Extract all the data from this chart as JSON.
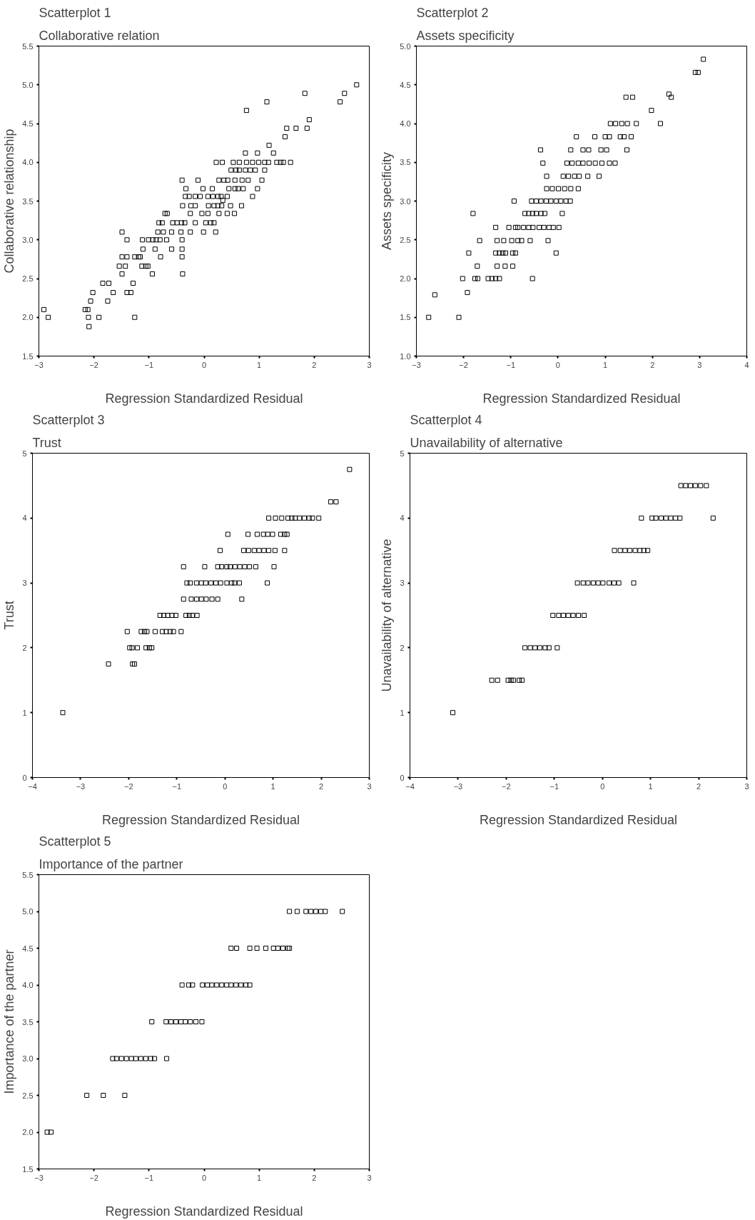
{
  "chart_data": [
    {
      "type": "scatter",
      "title": "Scatterplot 1",
      "subtitle": "Collaborative relation",
      "xlabel": "Regression Standardized Residual",
      "ylabel": "Collaborative relationship",
      "color": "#000000",
      "marker": "square",
      "xlim": [
        -3,
        3
      ],
      "ylim": [
        1.5,
        5.5
      ],
      "xticks": [
        -3,
        -2,
        -1,
        0,
        1,
        2,
        3
      ],
      "yticks": [
        1.5,
        {
          "value": 2,
          "label": "2.0"
        },
        2.5,
        {
          "value": 3,
          "label": "3.0"
        },
        3.5,
        {
          "value": 4,
          "label": "4.0"
        },
        4.5,
        {
          "value": 5,
          "label": "5.0"
        },
        5.5
      ],
      "x": [
        -2.91,
        -2.83,
        -2.16,
        -2.11,
        -2.1,
        -2.09,
        -2.06,
        -2.02,
        -1.91,
        -1.84,
        -1.73,
        -1.75,
        -1.65,
        -1.54,
        -1.49,
        -1.49,
        -1.49,
        -1.43,
        -1.4,
        -1.4,
        -1.4,
        -1.33,
        -1.29,
        -1.26,
        -1.26,
        -1.19,
        -1.16,
        -1.12,
        -1.11,
        -1.13,
        -1.06,
        -1.02,
        -1.01,
        -0.93,
        -0.87,
        -0.8,
        -0.94,
        -0.89,
        -0.84,
        -0.82,
        -0.76,
        -0.79,
        -0.74,
        -0.71,
        -0.67,
        -0.68,
        -0.59,
        -0.59,
        -0.57,
        -0.49,
        -0.42,
        -0.41,
        -0.35,
        -0.4,
        -0.4,
        -0.4,
        -0.4,
        -0.39,
        -0.39,
        -0.33,
        -0.34,
        -0.27,
        -0.25,
        -0.24,
        -0.16,
        -0.25,
        -0.16,
        -0.16,
        -0.07,
        -0.11,
        -0.04,
        -0.02,
        -0.01,
        0.03,
        0.12,
        0.18,
        0.07,
        0.16,
        0.25,
        0.31,
        0.08,
        0.18,
        0.25,
        0.07,
        0.27,
        0.15,
        0.21,
        0.22,
        0.33,
        0.27,
        0.36,
        0.43,
        0.34,
        0.32,
        0.42,
        0.42,
        0.48,
        0.49,
        0.58,
        0.64,
        0.75,
        0.84,
        0.93,
        0.53,
        0.64,
        0.77,
        0.88,
        0.99,
        1.1,
        1.17,
        0.45,
        0.56,
        0.62,
        0.71,
        0.55,
        0.56,
        0.69,
        0.8,
        0.68,
        0.75,
        0.77,
        0.88,
        0.97,
        0.97,
        1.05,
        1.1,
        1.14,
        1.18,
        1.26,
        1.32,
        1.39,
        1.44,
        1.57,
        1.47,
        1.5,
        1.67,
        1.83,
        1.87,
        1.91,
        2.47,
        2.55,
        2.77
      ],
      "values": [
        2.1,
        2.0,
        2.1,
        2.1,
        2.0,
        1.88,
        2.21,
        2.32,
        2.0,
        2.44,
        2.44,
        2.21,
        2.32,
        2.66,
        2.56,
        2.78,
        3.1,
        2.66,
        2.78,
        3.0,
        2.32,
        2.32,
        2.44,
        2.0,
        2.78,
        2.78,
        2.78,
        3.0,
        2.88,
        2.66,
        2.66,
        2.66,
        3.0,
        3.0,
        3.0,
        3.0,
        2.56,
        2.88,
        3.1,
        3.22,
        3.22,
        2.78,
        3.1,
        3.34,
        3.34,
        3.0,
        3.1,
        2.88,
        3.22,
        3.22,
        3.1,
        3.22,
        3.22,
        3.77,
        3.0,
        2.88,
        2.78,
        2.56,
        3.44,
        3.66,
        3.56,
        3.56,
        3.1,
        3.44,
        3.44,
        3.34,
        3.22,
        3.56,
        3.56,
        3.77,
        3.34,
        3.66,
        3.1,
        3.22,
        3.22,
        3.22,
        3.56,
        3.56,
        3.56,
        3.56,
        3.44,
        3.44,
        3.44,
        3.34,
        3.34,
        3.66,
        3.1,
        4.0,
        4.0,
        3.77,
        3.77,
        3.77,
        3.51,
        3.44,
        3.56,
        3.34,
        3.44,
        3.9,
        3.9,
        3.9,
        3.9,
        3.9,
        3.9,
        4.0,
        4.0,
        4.0,
        4.0,
        4.0,
        4.0,
        4.0,
        3.66,
        3.66,
        3.66,
        3.66,
        3.34,
        3.77,
        3.77,
        3.77,
        3.44,
        4.12,
        4.67,
        3.56,
        4.12,
        3.66,
        3.77,
        3.9,
        4.78,
        4.22,
        4.12,
        4.0,
        4.0,
        4.0,
        4.0,
        4.33,
        4.44,
        4.44,
        4.89,
        4.44,
        4.55,
        4.78,
        4.89,
        5.0
      ]
    },
    {
      "type": "scatter",
      "title": "Scatterplot 2",
      "subtitle": "Assets specificity",
      "xlabel": "Regression Standardized Residual",
      "ylabel": "Assets specificity",
      "color": "#000000",
      "marker": "square",
      "xlim": [
        -3,
        4
      ],
      "ylim": [
        1,
        5
      ],
      "xticks": [
        -3,
        -2,
        -1,
        0,
        1,
        2,
        3,
        4
      ],
      "yticks": [
        {
          "value": 1,
          "label": "1.0"
        },
        1.5,
        {
          "value": 2,
          "label": "2.0"
        },
        2.5,
        {
          "value": 3,
          "label": "3.0"
        },
        3.5,
        {
          "value": 4,
          "label": "4.0"
        },
        4.5,
        {
          "value": 5,
          "label": "5.0"
        }
      ],
      "x": [
        -2.74,
        -2.61,
        -2.1,
        -2.02,
        -1.92,
        -1.89,
        -1.8,
        -1.76,
        -1.7,
        -1.71,
        -1.66,
        -1.48,
        -1.4,
        -1.32,
        -1.24,
        -1.32,
        -1.32,
        -1.24,
        -1.17,
        -1.11,
        -1.29,
        -1.15,
        -1.29,
        -1.12,
        -1.04,
        -0.9,
        -0.85,
        -0.98,
        -0.85,
        -0.77,
        -0.96,
        -0.96,
        -0.9,
        -0.93,
        -0.73,
        -0.62,
        -0.53,
        -0.7,
        -0.62,
        -0.54,
        -0.46,
        -0.36,
        -0.28,
        -0.59,
        -0.56,
        -0.46,
        -0.36,
        -0.25,
        -0.15,
        -0.04,
        0.06,
        0.17,
        0.26,
        -0.54,
        -0.37,
        -0.4,
        -0.3,
        -0.19,
        -0.1,
        0.02,
        -0.32,
        -0.24,
        -0.24,
        -0.12,
        0.01,
        0.14,
        0.27,
        0.43,
        -0.21,
        -0.04,
        0.09,
        0.11,
        0.22,
        0.35,
        0.45,
        0.19,
        0.3,
        0.43,
        0.53,
        0.66,
        0.79,
        0.93,
        0.27,
        0.39,
        0.53,
        0.65,
        0.63,
        0.78,
        0.87,
        0.91,
        1.03,
        1.0,
        1.09,
        1.09,
        1.21,
        1.11,
        1.22,
        1.35,
        1.47,
        1.32,
        1.4,
        1.46,
        1.44,
        1.58,
        1.55,
        1.66,
        1.98,
        2.17,
        2.35,
        2.4,
        2.91,
        2.97,
        3.08
      ],
      "values": [
        1.5,
        1.79,
        1.5,
        2.0,
        1.82,
        2.33,
        2.84,
        2.0,
        2.0,
        2.16,
        2.49,
        2.0,
        2.0,
        2.0,
        2.0,
        2.66,
        2.33,
        2.33,
        2.33,
        2.33,
        2.49,
        2.49,
        2.16,
        2.16,
        2.66,
        2.66,
        2.66,
        2.49,
        2.49,
        2.49,
        2.16,
        2.33,
        2.33,
        3.0,
        2.66,
        2.66,
        2.66,
        2.84,
        2.84,
        2.84,
        2.84,
        2.84,
        2.84,
        2.49,
        3.0,
        3.0,
        3.0,
        3.0,
        3.0,
        3.0,
        3.0,
        3.0,
        3.0,
        2.0,
        3.66,
        2.66,
        2.66,
        2.66,
        2.66,
        2.66,
        3.49,
        3.32,
        3.16,
        3.16,
        3.16,
        3.16,
        3.16,
        3.16,
        2.49,
        2.33,
        2.84,
        3.32,
        3.32,
        3.32,
        3.32,
        3.49,
        3.49,
        3.49,
        3.49,
        3.49,
        3.49,
        3.49,
        3.66,
        3.83,
        3.66,
        3.66,
        3.32,
        3.83,
        3.32,
        3.66,
        3.66,
        3.83,
        3.83,
        3.49,
        3.49,
        4.0,
        4.0,
        4.0,
        4.0,
        3.83,
        3.83,
        3.66,
        4.34,
        4.34,
        3.83,
        4.0,
        4.17,
        4.0,
        4.38,
        4.34,
        4.66,
        4.66,
        4.83
      ]
    },
    {
      "type": "scatter",
      "title": "Scatterplot 3",
      "subtitle": "Trust",
      "xlabel": "Regression Standardized Residual",
      "ylabel": "Trust",
      "color": "#000000",
      "marker": "square",
      "xlim": [
        -4,
        3
      ],
      "ylim": [
        0,
        5
      ],
      "xticks": [
        -4,
        -3,
        -2,
        -1,
        0,
        1,
        2,
        3
      ],
      "yticks": [
        0,
        1,
        2,
        3,
        4,
        5
      ],
      "x": [
        -3.37,
        -2.42,
        -1.92,
        -1.88,
        -1.98,
        -1.93,
        -1.82,
        -1.64,
        -1.57,
        -1.52,
        -2.03,
        -1.74,
        -1.67,
        -1.62,
        -1.45,
        -1.3,
        -1.22,
        -1.14,
        -1.07,
        -0.91,
        -1.35,
        -1.27,
        -1.19,
        -1.1,
        -1.02,
        -0.81,
        -0.74,
        -0.68,
        -0.58,
        -0.86,
        -0.7,
        -0.59,
        -0.49,
        -0.39,
        -0.27,
        -0.15,
        0.35,
        -0.79,
        -0.72,
        -0.59,
        -0.49,
        -0.4,
        -0.29,
        -0.19,
        -0.09,
        0.04,
        0.14,
        0.2,
        0.3,
        0.88,
        -0.86,
        -0.42,
        -0.15,
        -0.07,
        0.04,
        0.11,
        0.21,
        0.31,
        0.41,
        0.51,
        0.64,
        1.02,
        -0.1,
        0.39,
        0.49,
        0.61,
        0.71,
        0.81,
        0.91,
        1.04,
        1.24,
        0.06,
        0.48,
        0.67,
        0.8,
        0.89,
        0.99,
        1.16,
        1.24,
        1.29,
        0.91,
        1.05,
        1.18,
        1.31,
        1.39,
        1.46,
        1.55,
        1.65,
        1.75,
        1.82,
        1.95,
        2.2,
        2.31,
        2.59
      ],
      "values": [
        1,
        1.75,
        1.75,
        1.75,
        2,
        2,
        2,
        2,
        2,
        2,
        2.25,
        2.25,
        2.25,
        2.25,
        2.25,
        2.25,
        2.25,
        2.25,
        2.25,
        2.25,
        2.5,
        2.5,
        2.5,
        2.5,
        2.5,
        2.5,
        2.5,
        2.5,
        2.5,
        2.75,
        2.75,
        2.75,
        2.75,
        2.75,
        2.75,
        2.75,
        2.75,
        3,
        3,
        3,
        3,
        3,
        3,
        3,
        3,
        3,
        3,
        3,
        3,
        3,
        3.25,
        3.25,
        3.25,
        3.25,
        3.25,
        3.25,
        3.25,
        3.25,
        3.25,
        3.25,
        3.25,
        3.25,
        3.5,
        3.5,
        3.5,
        3.5,
        3.5,
        3.5,
        3.5,
        3.5,
        3.5,
        3.75,
        3.75,
        3.75,
        3.75,
        3.75,
        3.75,
        3.75,
        3.75,
        3.75,
        4,
        4,
        4,
        4,
        4,
        4,
        4,
        4,
        4,
        4,
        4,
        4.25,
        4.25,
        4.75
      ]
    },
    {
      "type": "scatter",
      "title": "Scatterplot 4",
      "subtitle": "Unavailability of alternative",
      "xlabel": "Regression Standardized Residual",
      "ylabel": "Unavailability of alternative",
      "color": "#000000",
      "marker": "square",
      "xlim": [
        -4,
        3
      ],
      "ylim": [
        0,
        5
      ],
      "xticks": [
        -4,
        -3,
        -2,
        -1,
        0,
        1,
        2,
        3
      ],
      "yticks": [
        0,
        1,
        2,
        3,
        4,
        5
      ],
      "x": [
        -3.11,
        -2.3,
        -2.18,
        -1.96,
        -1.9,
        -1.85,
        -1.73,
        -1.67,
        -1.61,
        -1.5,
        -1.4,
        -1.3,
        -1.19,
        -1.11,
        -0.94,
        -1.03,
        -0.91,
        -0.81,
        -0.71,
        -0.61,
        -0.5,
        -0.38,
        -0.52,
        -0.4,
        -0.3,
        -0.19,
        -0.09,
        0.01,
        0.14,
        0.24,
        0.34,
        0.65,
        0.25,
        0.37,
        0.47,
        0.57,
        0.68,
        0.78,
        0.86,
        0.94,
        0.81,
        1.03,
        1.11,
        1.22,
        1.32,
        1.42,
        1.52,
        1.61,
        2.3,
        1.63,
        1.73,
        1.83,
        1.93,
        2.04,
        2.16
      ],
      "values": [
        1,
        1.5,
        1.5,
        1.5,
        1.5,
        1.5,
        1.5,
        1.5,
        2,
        2,
        2,
        2,
        2,
        2,
        2,
        2.5,
        2.5,
        2.5,
        2.5,
        2.5,
        2.5,
        2.5,
        3,
        3,
        3,
        3,
        3,
        3,
        3,
        3,
        3,
        3,
        3.5,
        3.5,
        3.5,
        3.5,
        3.5,
        3.5,
        3.5,
        3.5,
        4,
        4,
        4,
        4,
        4,
        4,
        4,
        4,
        4,
        4.5,
        4.5,
        4.5,
        4.5,
        4.5,
        4.5
      ]
    },
    {
      "type": "scatter",
      "title": "Scatterplot 5",
      "subtitle": "Importance of the partner",
      "xlabel": "Regression Standardized Residual",
      "ylabel": "Importance of the partner",
      "color": "#000000",
      "marker": "square",
      "xlim": [
        -3,
        3
      ],
      "ylim": [
        1.5,
        5.5
      ],
      "xticks": [
        -3,
        -2,
        -1,
        0,
        1,
        2,
        3
      ],
      "yticks": [
        1.5,
        {
          "value": 2,
          "label": "2.0"
        },
        2.5,
        {
          "value": 3,
          "label": "3.0"
        },
        3.5,
        {
          "value": 4,
          "label": "4.0"
        },
        4.5,
        {
          "value": 5,
          "label": "5.0"
        },
        5.5
      ],
      "x": [
        -2.85,
        -2.78,
        -2.13,
        -1.83,
        -1.44,
        -1.66,
        -1.59,
        -1.5,
        -1.41,
        -1.32,
        -1.24,
        -1.15,
        -1.06,
        -0.97,
        -0.9,
        -0.68,
        -0.95,
        -0.69,
        -0.6,
        -0.51,
        -0.42,
        -0.34,
        -0.25,
        -0.15,
        -0.04,
        -0.4,
        -0.28,
        -0.21,
        -0.03,
        0.06,
        0.14,
        0.23,
        0.32,
        0.41,
        0.49,
        0.58,
        0.67,
        0.76,
        0.83,
        0.49,
        0.59,
        0.83,
        0.96,
        1.12,
        1.26,
        1.34,
        1.43,
        1.52,
        1.55,
        1.55,
        1.69,
        1.85,
        1.94,
        2.03,
        2.12,
        2.2,
        2.51
      ],
      "values": [
        2,
        2,
        2.5,
        2.5,
        2.5,
        3,
        3,
        3,
        3,
        3,
        3,
        3,
        3,
        3,
        3,
        3,
        3.5,
        3.5,
        3.5,
        3.5,
        3.5,
        3.5,
        3.5,
        3.5,
        3.5,
        4,
        4,
        4,
        4,
        4,
        4,
        4,
        4,
        4,
        4,
        4,
        4,
        4,
        4,
        4.5,
        4.5,
        4.5,
        4.5,
        4.5,
        4.5,
        4.5,
        4.5,
        4.5,
        4.5,
        5,
        5,
        5,
        5,
        5,
        5,
        5,
        5
      ]
    }
  ]
}
